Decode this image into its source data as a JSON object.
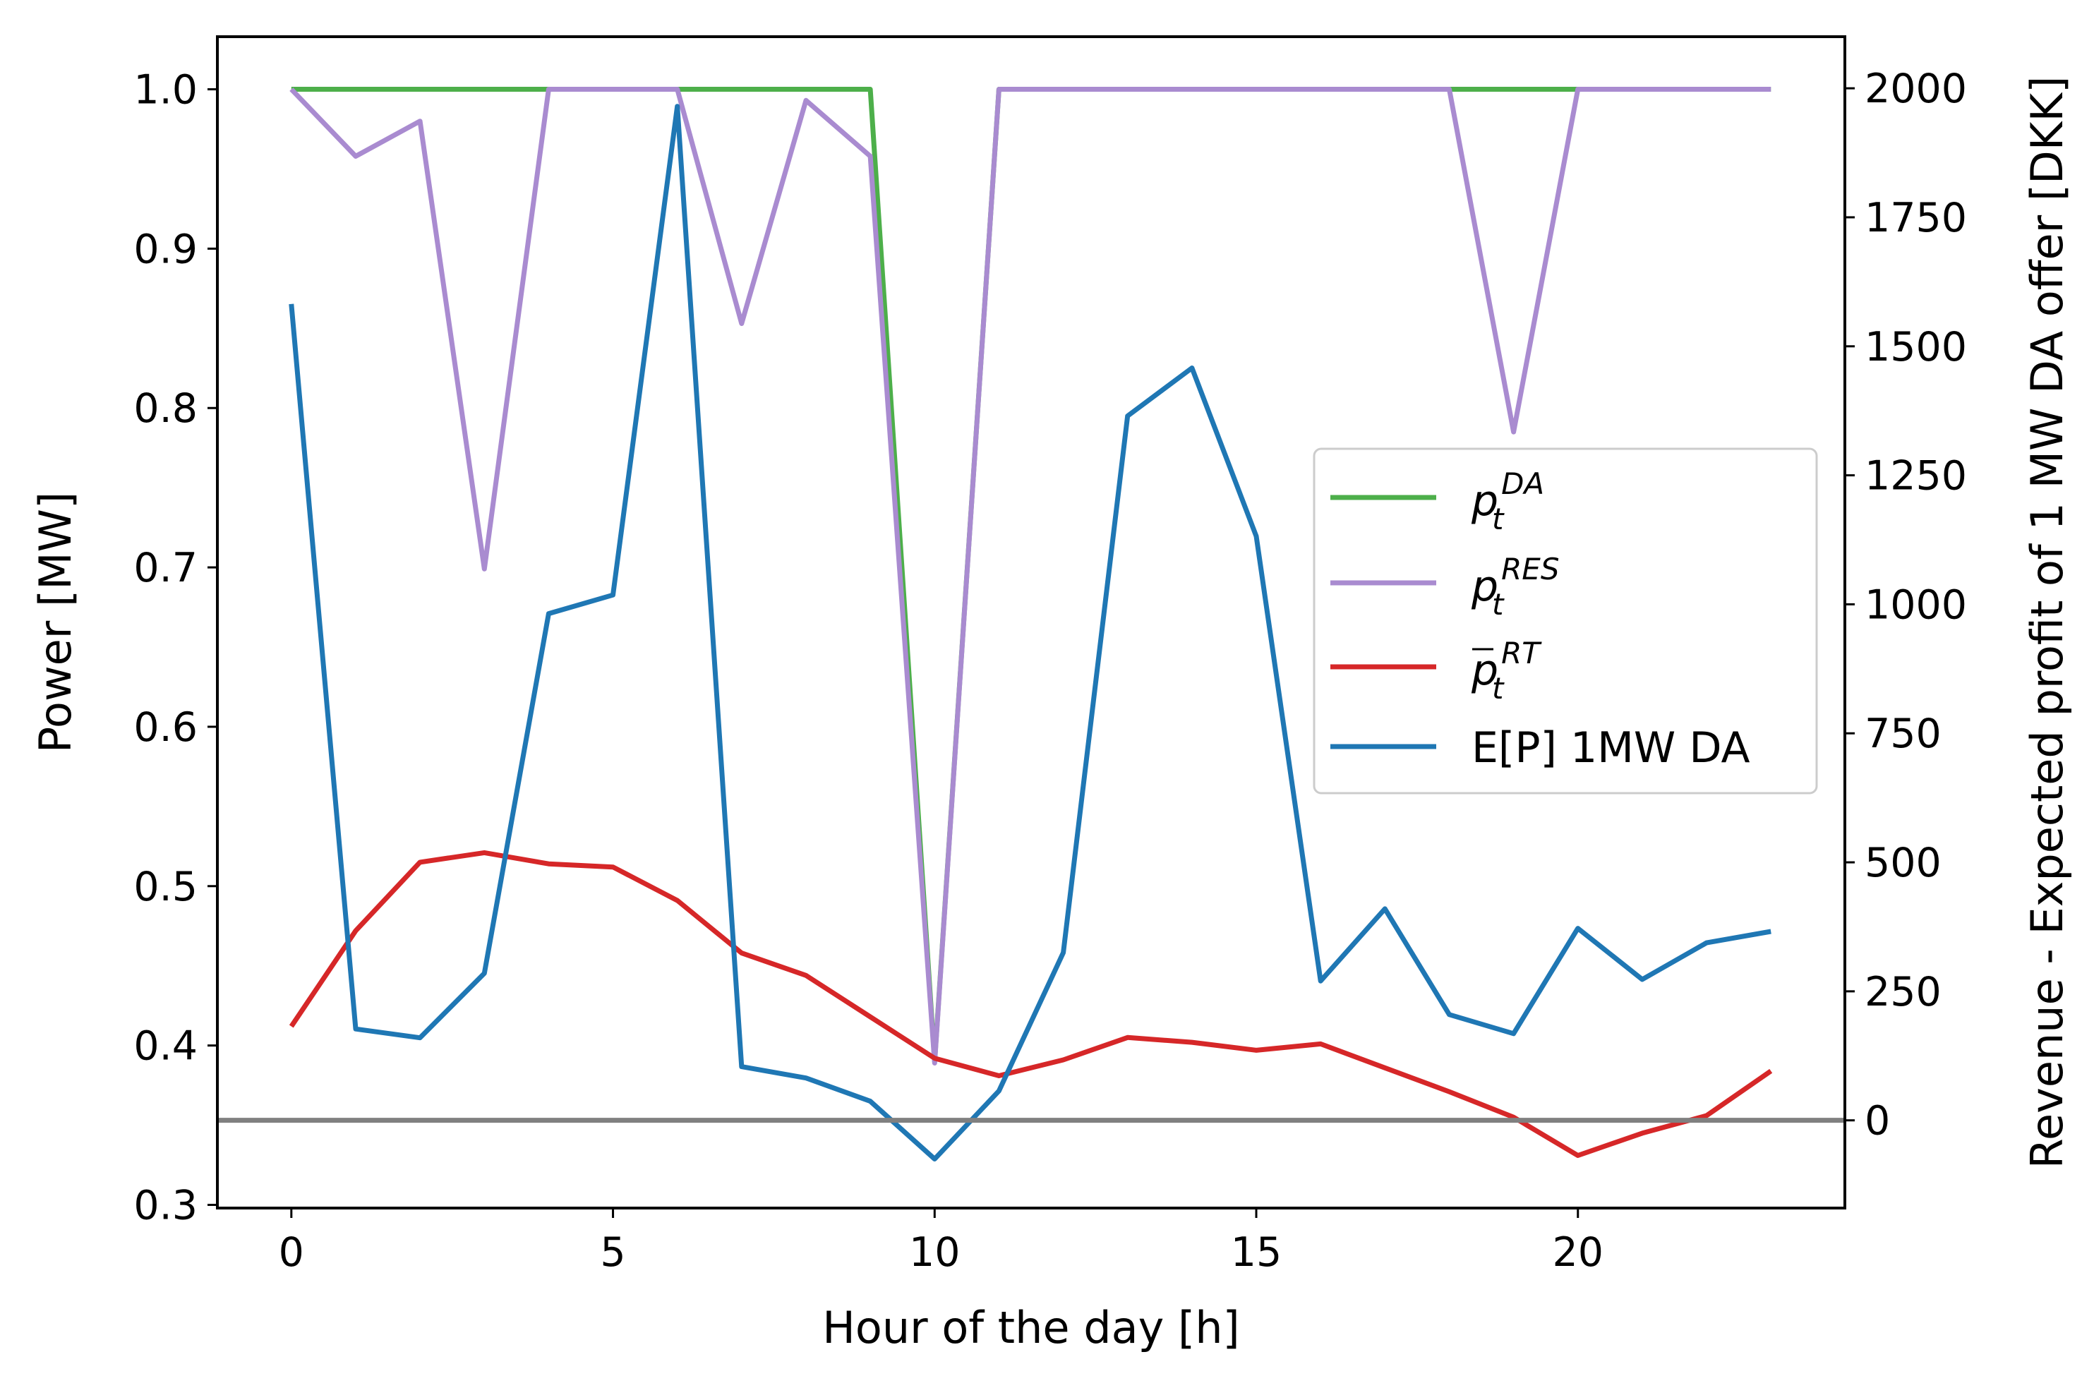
{
  "chart_data": {
    "type": "line",
    "xlabel": "Hour of the day [h]",
    "ylabel": "Power [MW]",
    "y2label": "Revenue - Expected profit of 1 MW DA offer [DKK]",
    "xlim": [
      -1.15,
      24.15
    ],
    "ylim": [
      0.298,
      1.033
    ],
    "y2lim": [
      -170,
      2100
    ],
    "xticks": [
      0,
      5,
      10,
      15,
      20
    ],
    "xtick_labels": [
      "0",
      "5",
      "10",
      "15",
      "20"
    ],
    "yticks": [
      0.3,
      0.4,
      0.5,
      0.6,
      0.7,
      0.8,
      0.9,
      1.0
    ],
    "ytick_labels": [
      "0.3",
      "0.4",
      "0.5",
      "0.6",
      "0.7",
      "0.8",
      "0.9",
      "1.0"
    ],
    "y2ticks": [
      0,
      250,
      500,
      750,
      1000,
      1250,
      1500,
      1750,
      2000
    ],
    "y2tick_labels": [
      "0",
      "250",
      "500",
      "750",
      "1000",
      "1250",
      "1500",
      "1750",
      "2000"
    ],
    "grid": false,
    "legend_position": "center-right",
    "x": [
      0,
      1,
      2,
      3,
      4,
      5,
      6,
      7,
      8,
      9,
      10,
      11,
      12,
      13,
      14,
      15,
      16,
      17,
      18,
      19,
      20,
      21,
      22,
      23
    ],
    "series": [
      {
        "name_base": "p",
        "name_sub": "t",
        "name_sup": "DA",
        "axis": "left",
        "color": "#4daf4a",
        "values": [
          1.0,
          1.0,
          1.0,
          1.0,
          1.0,
          1.0,
          1.0,
          1.0,
          1.0,
          1.0,
          0.39,
          1.0,
          1.0,
          1.0,
          1.0,
          1.0,
          1.0,
          1.0,
          1.0,
          1.0,
          1.0,
          1.0,
          1.0,
          1.0
        ]
      },
      {
        "name_base": "p",
        "name_sub": "t",
        "name_sup": "RES",
        "axis": "left",
        "color": "#a98bd0",
        "values": [
          1.0,
          0.958,
          0.98,
          0.699,
          1.0,
          1.0,
          1.0,
          0.853,
          0.993,
          0.958,
          0.389,
          1.0,
          1.0,
          1.0,
          1.0,
          1.0,
          1.0,
          1.0,
          1.0,
          0.785,
          1.0,
          1.0,
          1.0,
          1.0
        ]
      },
      {
        "name_base": "p",
        "name_sub": "t",
        "name_sup": "RT",
        "overline": true,
        "axis": "left",
        "color": "#d62728",
        "values": [
          0.412,
          0.472,
          0.515,
          0.521,
          0.514,
          0.512,
          0.491,
          0.458,
          0.444,
          0.418,
          0.392,
          0.381,
          0.391,
          0.405,
          0.402,
          0.397,
          0.401,
          0.386,
          0.371,
          0.355,
          0.331,
          0.345,
          0.356,
          0.384
        ]
      },
      {
        "name": "E[P] 1MW DA",
        "axis": "right",
        "color": "#1f77b4",
        "values": [
          1582,
          177,
          160,
          285,
          982,
          1018,
          1965,
          104,
          82,
          37,
          -75,
          57,
          325,
          1365,
          1458,
          1132,
          270,
          410,
          205,
          168,
          372,
          273,
          344,
          366
        ]
      }
    ],
    "reference_line": {
      "axis": "right",
      "value": 0,
      "color": "#808080"
    }
  }
}
